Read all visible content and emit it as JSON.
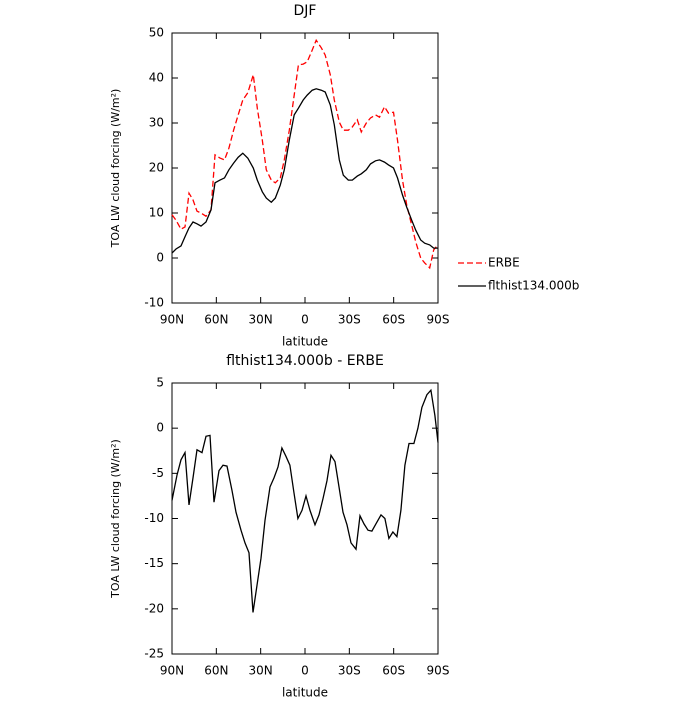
{
  "chart_data": [
    {
      "type": "line",
      "title": "DJF",
      "xlabel": "latitude",
      "ylabel": "TOA LW cloud forcing (W/m²)",
      "x": [
        90,
        87.3,
        83.9,
        81.2,
        78.5,
        75.8,
        73.1,
        70.4,
        67,
        63.6,
        60.9,
        57.5,
        54.5,
        51.5,
        48.3,
        45.2,
        42.1,
        38.7,
        35,
        32.3,
        28.9,
        26.2,
        22.8,
        20.1,
        16.7,
        14,
        10.6,
        7.3,
        4.5,
        1.2,
        -1.5,
        -4.9,
        -7.6,
        -11,
        -13.7,
        -17.1,
        -19.8,
        -23.2,
        -25.9,
        -29.3,
        -32,
        -35.4,
        -38.1,
        -41.5,
        -44.3,
        -47.7,
        -50.4,
        -53.8,
        -56.5,
        -59.9,
        -62.6,
        -66,
        -68.8,
        -72.2,
        -74.9,
        -78.3,
        -81,
        -84.4,
        -87.1,
        -89.8
      ],
      "series": [
        {
          "name": "ERBE",
          "color": "#ff0000",
          "line_style": "dashed",
          "values": [
            9.6,
            8.4,
            6.4,
            6.9,
            14.4,
            12.9,
            10.4,
            10,
            9.3,
            10.7,
            22.9,
            22.2,
            21.8,
            24.4,
            28.4,
            31.8,
            35.1,
            36.7,
            40.7,
            33.3,
            26.2,
            19.6,
            17.3,
            16.7,
            17.8,
            21.8,
            28.4,
            36.2,
            42.9,
            43.1,
            43.6,
            46.2,
            48.4,
            46.7,
            45.1,
            40.7,
            35.1,
            30.2,
            28.4,
            28.4,
            29.1,
            30.7,
            28,
            30,
            31.1,
            31.8,
            31.3,
            33.6,
            32.2,
            32.4,
            26.2,
            17.3,
            11.8,
            7.3,
            3.6,
            0,
            -1.1,
            -2.2,
            1.8,
            2.9
          ]
        },
        {
          "name": "flthist134.000b",
          "color": "#000000",
          "line_style": "solid",
          "values": [
            1.1,
            2,
            2.7,
            4.7,
            6.7,
            8,
            7.6,
            7.1,
            8,
            10.7,
            16.7,
            17.3,
            17.8,
            19.6,
            21.1,
            22.4,
            23.3,
            22.2,
            20,
            17.3,
            14.7,
            13.3,
            12.4,
            13.3,
            16.2,
            19.6,
            26.2,
            31.8,
            33.3,
            35.1,
            36.2,
            37.3,
            37.6,
            37.3,
            36.9,
            34,
            29.6,
            21.8,
            18.4,
            17.3,
            17.3,
            18.2,
            18.7,
            19.6,
            20.9,
            21.6,
            21.8,
            21.3,
            20.7,
            20,
            17.8,
            14,
            11.3,
            8.4,
            6.2,
            4,
            3.3,
            2.9,
            2.2,
            2.2
          ]
        }
      ],
      "xlim": [
        90,
        -90
      ],
      "xticks": [
        {
          "value": 90,
          "label": "90N"
        },
        {
          "value": 60,
          "label": "60N"
        },
        {
          "value": 30,
          "label": "30N"
        },
        0,
        {
          "value": -30,
          "label": "30S"
        },
        {
          "value": -60,
          "label": "60S"
        },
        {
          "value": -90,
          "label": "90S"
        }
      ],
      "ylim": [
        -10,
        50
      ],
      "yticks": [
        -10,
        0,
        10,
        20,
        30,
        40,
        50
      ],
      "legend": "right"
    },
    {
      "type": "line",
      "title": "flthist134.000b - ERBE",
      "xlabel": "latitude",
      "ylabel": "TOA LW cloud forcing (W/m²)",
      "x": [
        90,
        86.6,
        83.9,
        81.2,
        78.5,
        75.8,
        73.1,
        69.7,
        67,
        64.3,
        61.6,
        58.2,
        55.5,
        52.8,
        49.4,
        46.7,
        43.3,
        40.6,
        37.9,
        35.2,
        32.5,
        29.8,
        27.1,
        23.7,
        21,
        18.3,
        15.6,
        12.9,
        10.2,
        7.5,
        4.8,
        2,
        -0.7,
        -3.4,
        -6.8,
        -9.5,
        -12.2,
        -14.9,
        -17.6,
        -20.3,
        -23,
        -25.7,
        -28.4,
        -31.1,
        -34.5,
        -37.2,
        -39.9,
        -42.6,
        -45.3,
        -48,
        -51.4,
        -54.1,
        -56.8,
        -59.5,
        -62.2,
        -64.9,
        -67.6,
        -70.4,
        -73.7,
        -76.4,
        -79.1,
        -82.5,
        -85.2,
        -87.9,
        -90
      ],
      "values": [
        -8,
        -5.2,
        -3.5,
        -2.7,
        -8.5,
        -5.5,
        -2.4,
        -2.7,
        -0.9,
        -0.8,
        -8.2,
        -4.7,
        -4.1,
        -4.2,
        -6.9,
        -9.3,
        -11.3,
        -12.7,
        -13.8,
        -20.4,
        -17.4,
        -14.4,
        -10.2,
        -6.5,
        -5.5,
        -4.3,
        -2.2,
        -3.1,
        -4.1,
        -7.1,
        -10,
        -9.1,
        -7.5,
        -9.1,
        -10.7,
        -9.6,
        -7.8,
        -5.8,
        -3,
        -3.7,
        -6.5,
        -9.3,
        -10.7,
        -12.7,
        -13.4,
        -9.7,
        -10.6,
        -11.3,
        -11.4,
        -10.6,
        -9.6,
        -10,
        -12.2,
        -11.5,
        -12,
        -9.1,
        -4.1,
        -1.7,
        -1.7,
        0,
        2.3,
        3.7,
        4.2,
        1.4,
        -1.6
      ],
      "color": "#000000",
      "xlim": [
        90,
        -90
      ],
      "xticks": [
        {
          "value": 90,
          "label": "90N"
        },
        {
          "value": 60,
          "label": "60N"
        },
        {
          "value": 30,
          "label": "30N"
        },
        0,
        {
          "value": -30,
          "label": "30S"
        },
        {
          "value": -60,
          "label": "60S"
        },
        {
          "value": -90,
          "label": "90S"
        }
      ],
      "ylim": [
        -25,
        5
      ],
      "yticks": [
        -25,
        -20,
        -15,
        -10,
        -5,
        0,
        5
      ]
    }
  ]
}
